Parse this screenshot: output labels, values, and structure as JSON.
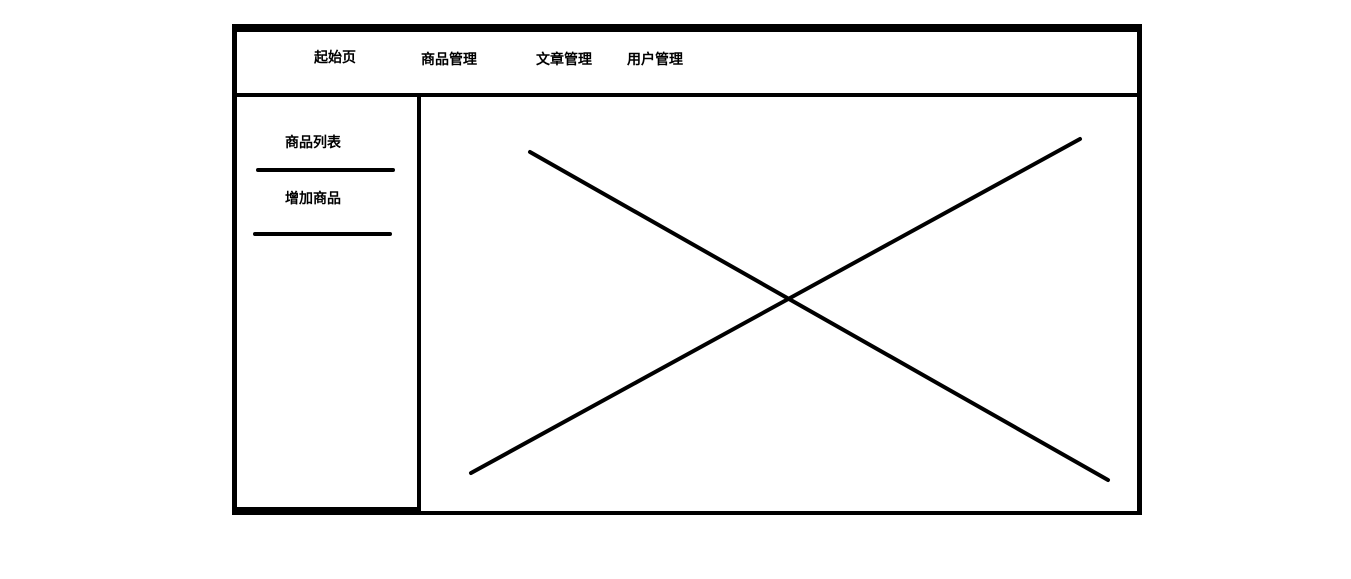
{
  "header": {
    "nav": [
      {
        "label": "起始页"
      },
      {
        "label": "商品管理"
      },
      {
        "label": "文章管理"
      },
      {
        "label": "用户管理"
      }
    ]
  },
  "sidebar": {
    "items": [
      {
        "label": "商品列表"
      },
      {
        "label": "增加商品"
      }
    ]
  },
  "content": {
    "placeholder": "image-placeholder-cross"
  },
  "colors": {
    "line": "#000000",
    "background": "#ffffff"
  }
}
